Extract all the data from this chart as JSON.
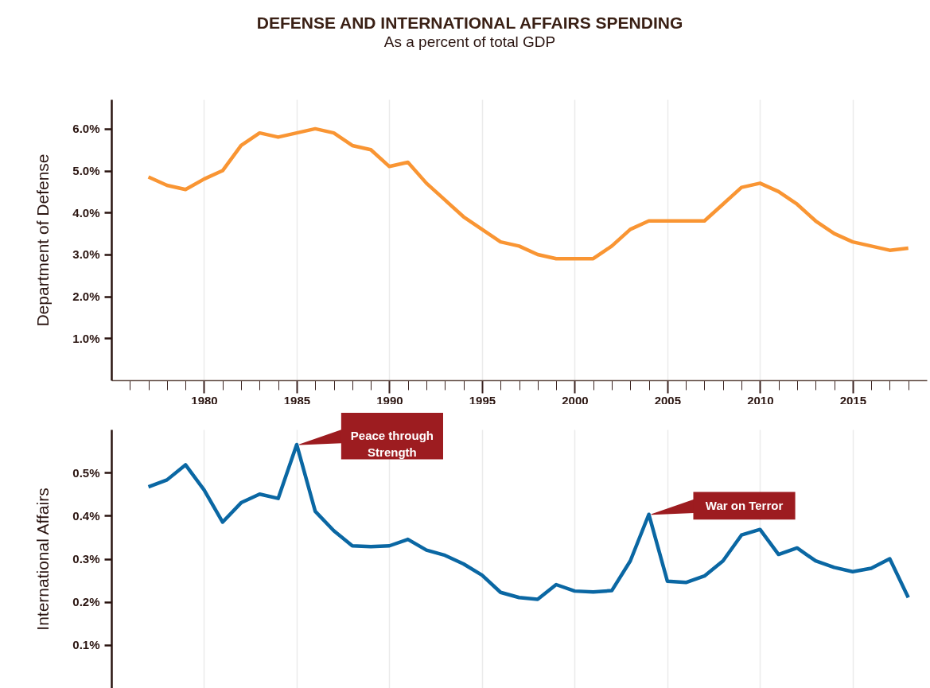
{
  "chart_data": [
    {
      "type": "line",
      "title": "DEFENSE AND INTERNATIONAL AFFAIRS SPENDING",
      "subtitle": "As a percent of total GDP",
      "ylabel": "Department of Defense",
      "x": [
        1977,
        1978,
        1979,
        1980,
        1981,
        1982,
        1983,
        1984,
        1985,
        1986,
        1987,
        1988,
        1989,
        1990,
        1991,
        1992,
        1993,
        1994,
        1995,
        1996,
        1997,
        1998,
        1999,
        2000,
        2001,
        2002,
        2003,
        2004,
        2005,
        2006,
        2007,
        2008,
        2009,
        2010,
        2011,
        2012,
        2013,
        2014,
        2015,
        2016,
        2017,
        2018
      ],
      "series": [
        {
          "color": "#f99533",
          "values": [
            4.85,
            4.65,
            4.55,
            4.8,
            5.0,
            5.6,
            5.9,
            5.8,
            5.9,
            6.0,
            5.9,
            5.6,
            5.5,
            5.1,
            5.2,
            4.7,
            4.3,
            3.9,
            3.6,
            3.3,
            3.2,
            3.0,
            2.9,
            2.9,
            2.9,
            3.2,
            3.6,
            3.8,
            3.8,
            3.8,
            3.8,
            4.2,
            4.6,
            4.7,
            4.5,
            4.2,
            3.8,
            3.5,
            3.3,
            3.2,
            3.1,
            3.15
          ]
        }
      ],
      "xlim": [
        1975,
        2019
      ],
      "xticks": [
        {
          "value": 1976,
          "label": null
        },
        {
          "value": 1977,
          "label": null
        },
        {
          "value": 1978,
          "label": null
        },
        {
          "value": 1979,
          "label": null
        },
        1980,
        {
          "value": 1981,
          "label": null
        },
        {
          "value": 1982,
          "label": null
        },
        {
          "value": 1983,
          "label": null
        },
        {
          "value": 1984,
          "label": null
        },
        1985,
        {
          "value": 1986,
          "label": null
        },
        {
          "value": 1987,
          "label": null
        },
        {
          "value": 1988,
          "label": null
        },
        {
          "value": 1989,
          "label": null
        },
        1990,
        {
          "value": 1991,
          "label": null
        },
        {
          "value": 1992,
          "label": null
        },
        {
          "value": 1993,
          "label": null
        },
        {
          "value": 1994,
          "label": null
        },
        1995,
        {
          "value": 1996,
          "label": null
        },
        {
          "value": 1997,
          "label": null
        },
        {
          "value": 1998,
          "label": null
        },
        {
          "value": 1999,
          "label": null
        },
        2000,
        {
          "value": 2001,
          "label": null
        },
        {
          "value": 2002,
          "label": null
        },
        {
          "value": 2003,
          "label": null
        },
        {
          "value": 2004,
          "label": null
        },
        2005,
        {
          "value": 2006,
          "label": null
        },
        {
          "value": 2007,
          "label": null
        },
        {
          "value": 2008,
          "label": null
        },
        {
          "value": 2009,
          "label": null
        },
        2010,
        {
          "value": 2011,
          "label": null
        },
        {
          "value": 2012,
          "label": null
        },
        {
          "value": 2013,
          "label": null
        },
        {
          "value": 2014,
          "label": null
        },
        2015,
        {
          "value": 2016,
          "label": null
        },
        {
          "value": 2017,
          "label": null
        },
        {
          "value": 2018,
          "label": null
        }
      ],
      "ylim": [
        0,
        6.7
      ],
      "yticks": [
        {
          "value": 1,
          "label": "1.0%"
        },
        {
          "value": 2,
          "label": "2.0%"
        },
        {
          "value": 3,
          "label": "3.0%"
        },
        {
          "value": 4,
          "label": "4.0%"
        },
        {
          "value": 5,
          "label": "5.0%"
        },
        {
          "value": 6,
          "label": "6.0%"
        }
      ],
      "grid": "x",
      "marker": "none",
      "line_style": "solid"
    },
    {
      "type": "line",
      "ylabel": "International Affairs",
      "x": [
        1977,
        1978,
        1979,
        1980,
        1981,
        1982,
        1983,
        1984,
        1985,
        1986,
        1987,
        1988,
        1989,
        1990,
        1991,
        1992,
        1993,
        1994,
        1995,
        1996,
        1997,
        1998,
        1999,
        2000,
        2001,
        2002,
        2003,
        2004,
        2005,
        2006,
        2007,
        2008,
        2009,
        2010,
        2011,
        2012,
        2013,
        2014,
        2015,
        2016,
        2017,
        2018
      ],
      "series": [
        {
          "color": "#0a67a3",
          "values": [
            0.467,
            0.483,
            0.518,
            0.46,
            0.385,
            0.43,
            0.45,
            0.44,
            0.565,
            0.41,
            0.365,
            0.33,
            0.328,
            0.33,
            0.345,
            0.32,
            0.308,
            0.288,
            0.262,
            0.222,
            0.21,
            0.206,
            0.24,
            0.225,
            0.223,
            0.226,
            0.295,
            0.403,
            0.248,
            0.245,
            0.26,
            0.295,
            0.355,
            0.368,
            0.31,
            0.325,
            0.295,
            0.28,
            0.27,
            0.278,
            0.3,
            0.21
          ]
        }
      ],
      "xticks": [
        1980,
        1985,
        1990,
        1995,
        2000,
        2005,
        2010,
        2015
      ],
      "ylim": [
        0,
        0.6
      ],
      "yticks": [
        {
          "value": 0.1,
          "label": "0.1%"
        },
        {
          "value": 0.2,
          "label": "0.2%"
        },
        {
          "value": 0.3,
          "label": "0.3%"
        },
        {
          "value": 0.4,
          "label": "0.4%"
        },
        {
          "value": 0.5,
          "label": "0.5%"
        }
      ],
      "annotations": [
        {
          "text": "Peace through Strength",
          "x": 1985,
          "y": 0.565
        },
        {
          "text": "War on Terror",
          "x": 2004,
          "y": 0.403
        }
      ],
      "tick_labels": "y",
      "grid": "x",
      "marker": "none",
      "line_style": "solid"
    }
  ]
}
